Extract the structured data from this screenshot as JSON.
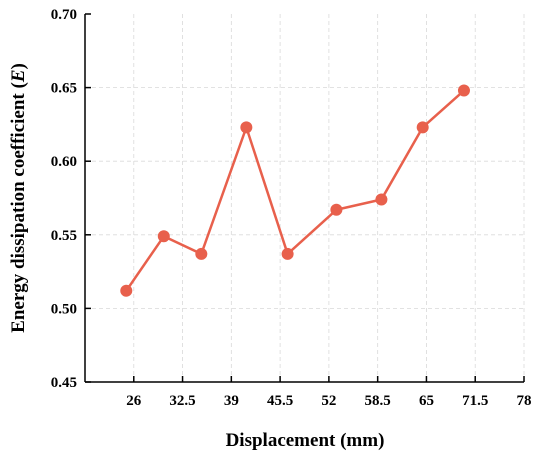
{
  "chart_data": {
    "type": "line",
    "xlabel": "Displacement (mm)",
    "ylabel_prefix": "Energy dissipation coefficient (",
    "ylabel_var": "E",
    "ylabel_suffix": ")",
    "xlim": [
      19.5,
      78
    ],
    "ylim": [
      0.45,
      0.7
    ],
    "xticks": [
      26,
      32.5,
      39,
      45.5,
      52,
      58.5,
      65,
      71.5,
      78
    ],
    "xtick_labels": [
      "26",
      "32.5",
      "39",
      "45.5",
      "52",
      "58.5",
      "65",
      "71.5",
      "78"
    ],
    "yticks": [
      0.45,
      0.5,
      0.55,
      0.6,
      0.65,
      0.7
    ],
    "ytick_labels": [
      "0.45",
      "0.50",
      "0.55",
      "0.60",
      "0.65",
      "0.70"
    ],
    "grid": true,
    "series": [
      {
        "color": "#e8604c",
        "x": [
          25,
          30,
          35,
          41,
          46.5,
          53,
          59,
          64.5,
          70
        ],
        "y": [
          0.512,
          0.549,
          0.537,
          0.623,
          0.537,
          0.567,
          0.574,
          0.623,
          0.648
        ]
      }
    ]
  }
}
